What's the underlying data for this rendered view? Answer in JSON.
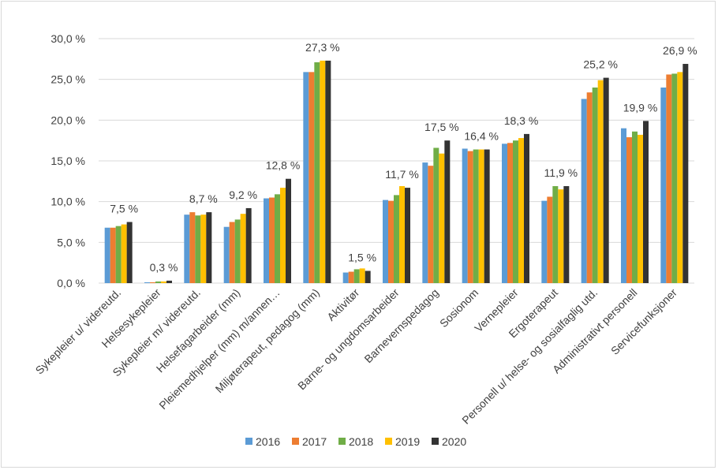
{
  "chart_data": {
    "type": "bar",
    "title": "",
    "xlabel": "",
    "ylabel": "",
    "ylim": [
      0,
      30
    ],
    "yticks": [
      "0,0 %",
      "5,0 %",
      "10,0 %",
      "15,0 %",
      "20,0 %",
      "25,0 %",
      "30,0 %"
    ],
    "grid": true,
    "legend_position": "bottom",
    "categories": [
      "Sykepleier u/ videreutd.",
      "Helsesykepleier",
      "Sykepleier m/ videreutd.",
      "Helsefagarbeider (mm)",
      "Pleiemedhjelper (mm) m/annen…",
      "Miljøterapeut, pedagog (mm)",
      "Aktivitør",
      "Barne- og ungdomsarbeider",
      "Barnevernspedagog",
      "Sosionom",
      "Vernepleier",
      "Ergoterapeut",
      "Personell u/ helse- og sosialfaglig utd.",
      "Administrativt personell",
      "Servicefunksjoner"
    ],
    "series": [
      {
        "name": "2016",
        "color": "#5B9BD5",
        "values": [
          6.8,
          0.1,
          8.4,
          6.9,
          10.4,
          25.9,
          1.3,
          10.2,
          14.8,
          16.5,
          17.1,
          10.1,
          22.6,
          19.0,
          24.0
        ]
      },
      {
        "name": "2017",
        "color": "#ED7D31",
        "values": [
          6.8,
          0.1,
          8.7,
          7.5,
          10.5,
          25.9,
          1.4,
          10.1,
          14.4,
          16.2,
          17.2,
          10.6,
          23.4,
          17.9,
          25.6
        ]
      },
      {
        "name": "2018",
        "color": "#70AD47",
        "values": [
          7.0,
          0.2,
          8.3,
          7.8,
          10.9,
          27.1,
          1.7,
          10.8,
          16.6,
          16.4,
          17.5,
          11.9,
          24.0,
          18.6,
          25.7
        ]
      },
      {
        "name": "2019",
        "color": "#FFC000",
        "values": [
          7.2,
          0.2,
          8.4,
          8.5,
          11.7,
          27.3,
          1.8,
          11.9,
          15.9,
          16.4,
          17.8,
          11.5,
          24.9,
          18.2,
          25.9
        ]
      },
      {
        "name": "2020",
        "color": "#333333",
        "values": [
          7.5,
          0.3,
          8.7,
          9.2,
          12.8,
          27.3,
          1.5,
          11.7,
          17.5,
          16.4,
          18.3,
          11.9,
          25.2,
          19.9,
          26.9
        ]
      }
    ],
    "data_labels": [
      "7,5 %",
      "0,3 %",
      "8,7 %",
      "9,2 %",
      "12,8 %",
      "27,3 %",
      "1,5 %",
      "11,7 %",
      "17,5 %",
      "16,4 %",
      "18,3 %",
      "11,9 %",
      "25,2 %",
      "19,9 %",
      "26,9 %"
    ],
    "gridline_color": "#d9d9d9"
  }
}
